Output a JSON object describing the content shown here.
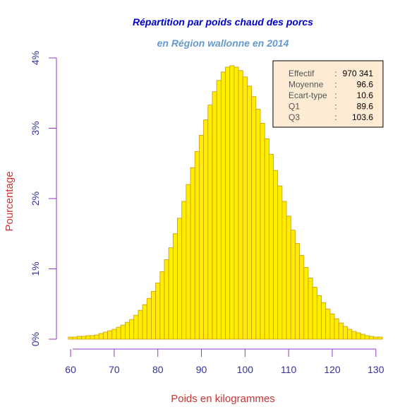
{
  "chart_data": {
    "type": "bar",
    "title": "Répartition par poids chaud des porcs",
    "subtitle": "en Région wallonne en 2014",
    "xlabel": "Poids en kilogrammes",
    "ylabel": "Pourcentage",
    "xlim": [
      59.5,
      131
    ],
    "ylim": [
      0,
      4
    ],
    "x_ticks": [
      "60",
      "70",
      "80",
      "90",
      "100",
      "110",
      "120",
      "130"
    ],
    "y_ticks": [
      "0%",
      "1%",
      "2%",
      "3%",
      "4%"
    ],
    "grid": false,
    "bin_width": 1,
    "x": [
      59.5,
      60.5,
      61.5,
      62.5,
      63.5,
      64.5,
      65.5,
      66.5,
      67.5,
      68.5,
      69.5,
      70.5,
      71.5,
      72.5,
      73.5,
      74.5,
      75.5,
      76.5,
      77.5,
      78.5,
      79.5,
      80.5,
      81.5,
      82.5,
      83.5,
      84.5,
      85.5,
      86.5,
      87.5,
      88.5,
      89.5,
      90.5,
      91.5,
      92.5,
      93.5,
      94.5,
      95.5,
      96.5,
      97.5,
      98.5,
      99.5,
      100.5,
      101.5,
      102.5,
      103.5,
      104.5,
      105.5,
      106.5,
      107.5,
      108.5,
      109.5,
      110.5,
      111.5,
      112.5,
      113.5,
      114.5,
      115.5,
      116.5,
      117.5,
      118.5,
      119.5,
      120.5,
      121.5,
      122.5,
      123.5,
      124.5,
      125.5,
      126.5,
      127.5,
      128.5,
      129.5,
      130.5
    ],
    "values": [
      0.03,
      0.03,
      0.04,
      0.04,
      0.05,
      0.05,
      0.06,
      0.08,
      0.1,
      0.12,
      0.14,
      0.17,
      0.2,
      0.24,
      0.28,
      0.34,
      0.41,
      0.49,
      0.58,
      0.68,
      0.8,
      0.96,
      1.13,
      1.3,
      1.5,
      1.72,
      1.96,
      2.2,
      2.44,
      2.67,
      2.9,
      3.12,
      3.33,
      3.52,
      3.68,
      3.8,
      3.87,
      3.89,
      3.87,
      3.82,
      3.73,
      3.6,
      3.45,
      3.27,
      3.07,
      2.85,
      2.63,
      2.4,
      2.18,
      1.96,
      1.75,
      1.55,
      1.36,
      1.19,
      1.02,
      0.87,
      0.74,
      0.62,
      0.52,
      0.43,
      0.36,
      0.29,
      0.23,
      0.18,
      0.14,
      0.11,
      0.09,
      0.07,
      0.05,
      0.04,
      0.03,
      0.03
    ],
    "bar_color": "#ffee00",
    "bar_edge_color": "#cc9900",
    "axis_color": "#9933cc",
    "title_color": "#0000cc",
    "subtitle_color": "#6699cc",
    "tick_color": "#333399",
    "axis_label_color": "#cc3333",
    "legend": {
      "placement": "top-right",
      "background": "#fdebd3",
      "rows": [
        {
          "label": "Effectif",
          "sep": ":",
          "value": "970 341"
        },
        {
          "label": "Moyenne",
          "sep": ":",
          "value": "96.6"
        },
        {
          "label": "Ecart-type",
          "sep": ":",
          "value": "10.6"
        },
        {
          "label": "Q1",
          "sep": ":",
          "value": "89.6"
        },
        {
          "label": "Q3",
          "sep": ":",
          "value": "103.6"
        }
      ]
    }
  }
}
